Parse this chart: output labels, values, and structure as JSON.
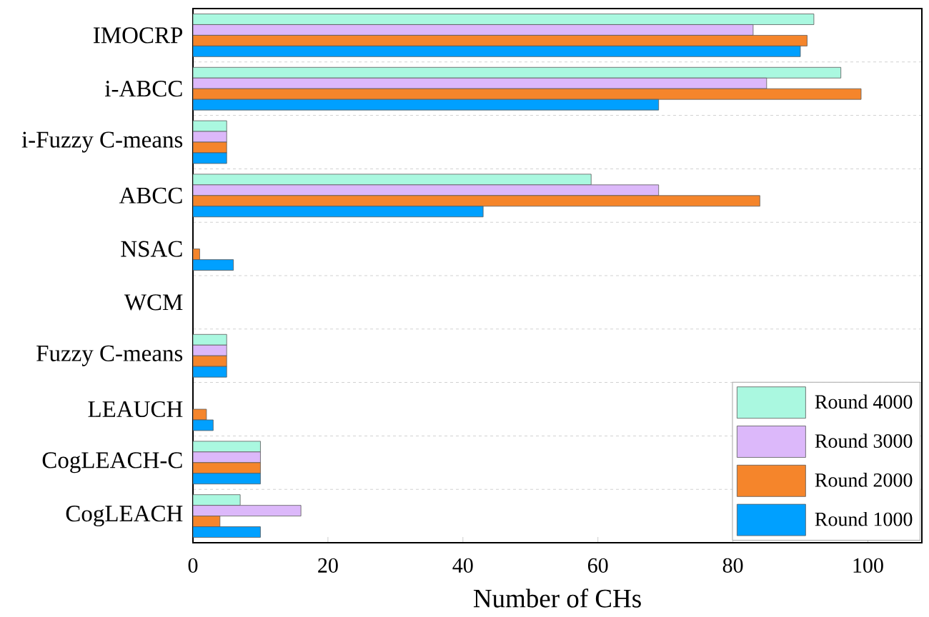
{
  "chart_data": {
    "type": "bar",
    "orientation": "horizontal",
    "xlabel": "Number of CHs",
    "categories": [
      "IMOCRP",
      "i-ABCC",
      "i-Fuzzy C-means",
      "ABCC",
      "NSAC",
      "WCM",
      "Fuzzy C-means",
      "LEAUCH",
      "CogLEACH-C",
      "CogLEACH"
    ],
    "series": [
      {
        "name": "Round 4000",
        "color": "#aaf8e0",
        "values": [
          92,
          96,
          5,
          59,
          0,
          0,
          5,
          0,
          10,
          7
        ]
      },
      {
        "name": "Round 3000",
        "color": "#dcb8fa",
        "values": [
          83,
          85,
          5,
          69,
          0,
          0,
          5,
          0,
          10,
          16
        ]
      },
      {
        "name": "Round 2000",
        "color": "#f5852b",
        "values": [
          91,
          99,
          5,
          84,
          1,
          0,
          5,
          2,
          10,
          4
        ]
      },
      {
        "name": "Round 1000",
        "color": "#00a0ff",
        "values": [
          90,
          69,
          5,
          43,
          6,
          0,
          5,
          3,
          10,
          10
        ]
      }
    ],
    "xlim": [
      0,
      108
    ],
    "xticks": [
      0,
      20,
      40,
      60,
      80,
      100
    ],
    "grid": "y",
    "legend": "bottom right"
  }
}
